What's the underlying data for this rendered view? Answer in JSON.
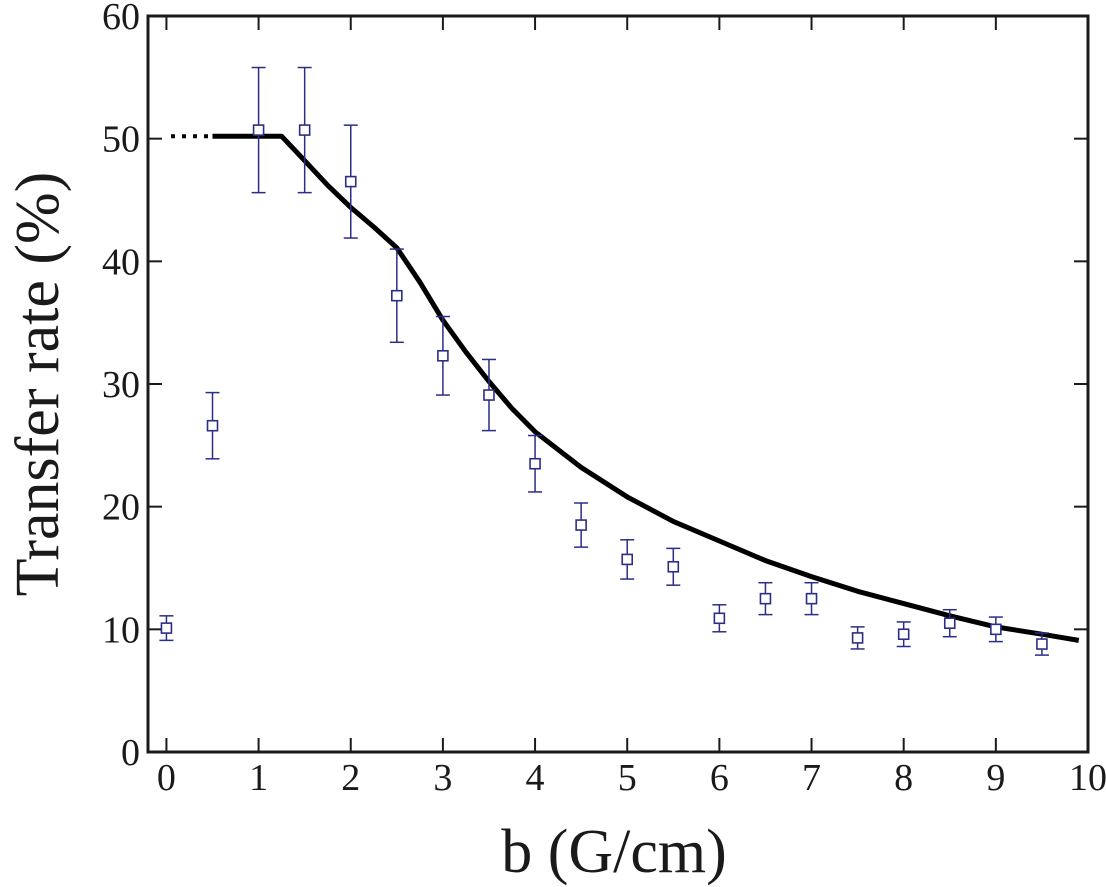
{
  "chart_data": {
    "type": "scatter",
    "title": "",
    "xlabel": "b (G/cm)",
    "ylabel": "Transfer rate (%)",
    "xlim": [
      -0.2,
      10
    ],
    "ylim": [
      0,
      60
    ],
    "x_ticks": [
      0,
      1,
      2,
      3,
      4,
      5,
      6,
      7,
      8,
      9,
      10
    ],
    "y_ticks": [
      0,
      10,
      20,
      30,
      40,
      50,
      60
    ],
    "grid": false,
    "colors": {
      "points": "#2b2e86",
      "curve": "#000000",
      "axes": "#1a1a1a"
    },
    "series": [
      {
        "kind": "points-with-error-bars",
        "marker": "square",
        "x": [
          0,
          0.5,
          1,
          1.5,
          2,
          2.5,
          3,
          3.5,
          4,
          4.5,
          5,
          5.5,
          6,
          6.5,
          7,
          7.5,
          8,
          8.5,
          9,
          9.5
        ],
        "y": [
          10.1,
          26.6,
          50.7,
          50.7,
          46.5,
          37.2,
          32.3,
          29.1,
          23.5,
          18.5,
          15.7,
          15.1,
          10.9,
          12.5,
          12.5,
          9.3,
          9.6,
          10.5,
          10.0,
          8.8
        ],
        "error": [
          1.0,
          2.7,
          5.1,
          5.1,
          4.6,
          3.8,
          3.2,
          2.9,
          2.3,
          1.8,
          1.6,
          1.5,
          1.1,
          1.3,
          1.3,
          0.9,
          1.0,
          1.1,
          1.0,
          0.9
        ]
      },
      {
        "kind": "curve",
        "style": "solid",
        "x": [
          0.5,
          1.0,
          1.25,
          1.5,
          1.75,
          2.0,
          2.25,
          2.5,
          2.75,
          3.0,
          3.25,
          3.5,
          3.75,
          4.0,
          4.5,
          5.0,
          5.5,
          6.0,
          6.5,
          7.0,
          7.5,
          8.0,
          8.5,
          9.0,
          9.5,
          9.9
        ],
        "y": [
          50.2,
          50.2,
          50.2,
          48.2,
          46.2,
          44.4,
          42.8,
          41.1,
          38.3,
          35.2,
          32.6,
          30.2,
          28.0,
          26.1,
          23.2,
          20.8,
          18.8,
          17.2,
          15.6,
          14.3,
          13.1,
          12.1,
          11.1,
          10.2,
          9.6,
          9.1
        ]
      },
      {
        "kind": "curve",
        "style": "dotted",
        "x": [
          0.05,
          0.5
        ],
        "y": [
          50.2,
          50.2
        ]
      }
    ]
  }
}
